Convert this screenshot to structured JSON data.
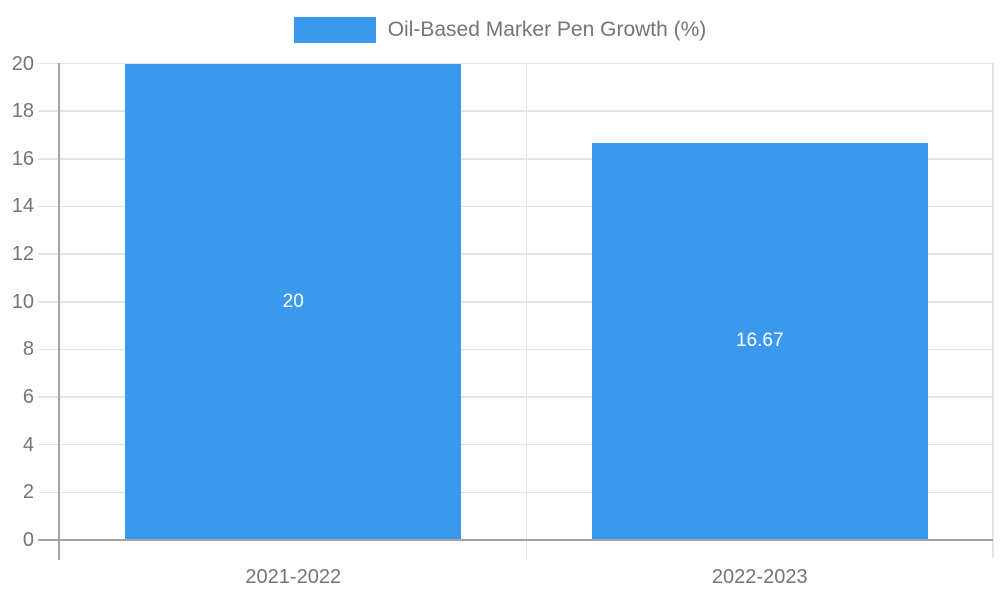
{
  "legend": {
    "label": "Oil-Based Marker Pen Growth (%)"
  },
  "colors": {
    "bar": "#3a99ec",
    "grid": "#e5e5e5",
    "axis": "#a3a3a3",
    "text": "#757575",
    "data_label": "#ffffff",
    "background": "#ffffff"
  },
  "chart_data": {
    "type": "bar",
    "title": "Oil-Based Marker Pen Growth (%)",
    "categories": [
      "2021-2022",
      "2022-2023"
    ],
    "values": [
      20,
      16.67
    ],
    "data_labels": [
      "20",
      "16.67"
    ],
    "xlabel": "",
    "ylabel": "",
    "ylim": [
      0,
      20
    ],
    "yticks": [
      0,
      2,
      4,
      6,
      8,
      10,
      12,
      14,
      16,
      18,
      20
    ],
    "grid": true,
    "legend_position": "top-center",
    "bar_color": "#3a99ec"
  }
}
